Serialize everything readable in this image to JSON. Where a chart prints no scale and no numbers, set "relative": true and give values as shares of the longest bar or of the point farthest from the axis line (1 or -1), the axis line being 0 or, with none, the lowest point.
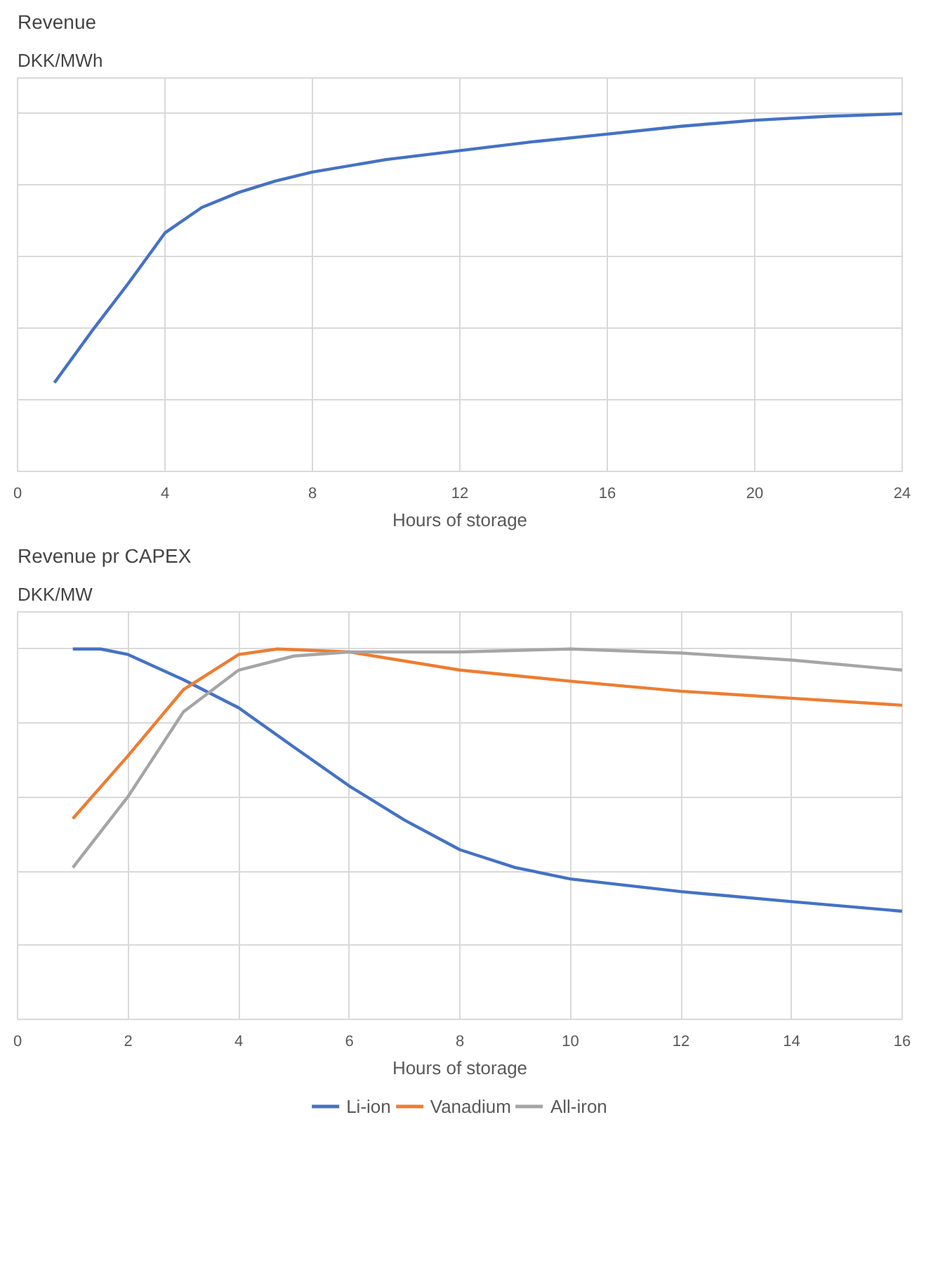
{
  "chart_data": [
    {
      "type": "line",
      "title": "Revenue",
      "ylabel": "DKK/MWh",
      "xlabel": "Hours of storage",
      "relative": true,
      "xlim": [
        0,
        24
      ],
      "xticks": [
        0,
        4,
        8,
        12,
        16,
        20,
        24
      ],
      "grid": true,
      "legend": false,
      "marker": "none",
      "line_style": "solid",
      "series": [
        {
          "color": "#4472c4",
          "x": [
            1,
            2,
            3,
            4,
            5,
            6,
            7,
            8,
            10,
            12,
            14,
            16,
            18,
            20,
            22,
            24
          ],
          "values": [
            0.248,
            0.39,
            0.525,
            0.667,
            0.738,
            0.78,
            0.812,
            0.837,
            0.872,
            0.897,
            0.922,
            0.943,
            0.965,
            0.982,
            0.993,
            1
          ]
        }
      ]
    },
    {
      "type": "line",
      "title": "Revenue pr CAPEX",
      "ylabel": "DKK/MW",
      "xlabel": "Hours of storage",
      "relative": true,
      "xlim": [
        0,
        16
      ],
      "xticks": [
        0,
        2,
        4,
        6,
        8,
        10,
        12,
        14,
        16
      ],
      "grid": true,
      "legend": "bottom",
      "marker": "none",
      "line_style": "solid",
      "series": [
        {
          "name": "Li-ion",
          "color": "#4472c4",
          "x": [
            1,
            1.5,
            2,
            3,
            4,
            5,
            6,
            7,
            8,
            9,
            10,
            12,
            14,
            16
          ],
          "values": [
            1,
            1,
            0.985,
            0.917,
            0.841,
            0.735,
            0.63,
            0.538,
            0.458,
            0.41,
            0.379,
            0.345,
            0.318,
            0.292
          ]
        },
        {
          "name": "Vanadium",
          "color": "#ed7d31",
          "x": [
            1,
            2,
            3,
            4,
            4.7,
            6,
            8,
            10,
            12,
            14,
            16
          ],
          "values": [
            0.542,
            0.712,
            0.89,
            0.985,
            1,
            0.992,
            0.943,
            0.913,
            0.886,
            0.867,
            0.848
          ]
        },
        {
          "name": "All-iron",
          "color": "#a5a5a5",
          "x": [
            1,
            2,
            3,
            4,
            5,
            6,
            8,
            10,
            12,
            14,
            16
          ],
          "values": [
            0.41,
            0.602,
            0.83,
            0.943,
            0.981,
            0.992,
            0.992,
            1,
            0.989,
            0.97,
            0.943
          ]
        }
      ]
    }
  ]
}
